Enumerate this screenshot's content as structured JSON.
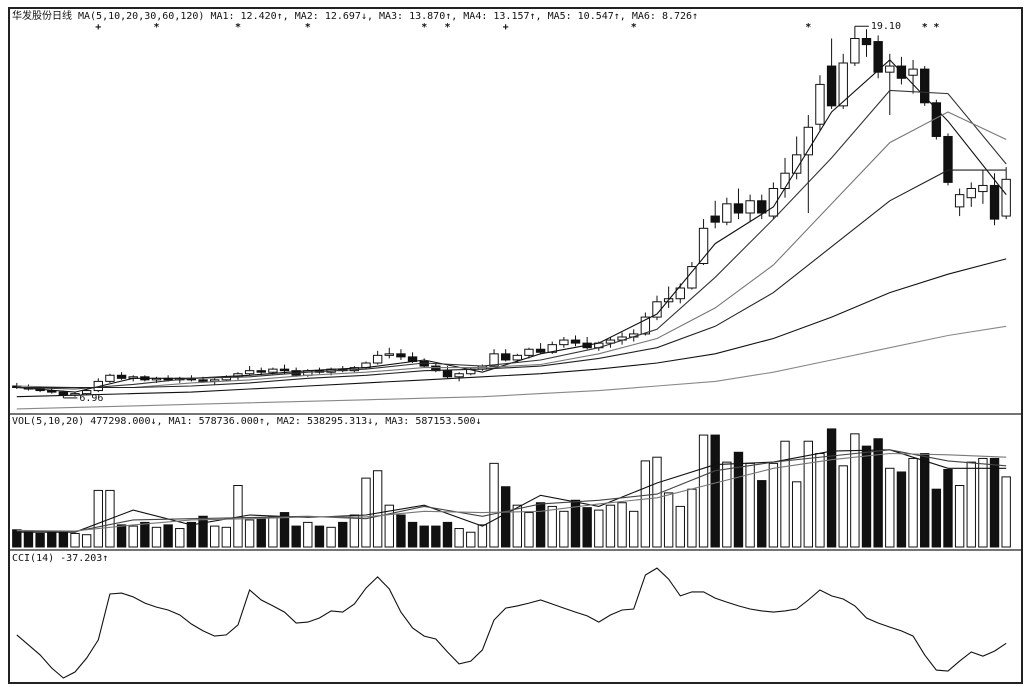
{
  "chart_data": [
    {
      "type": "candlestick",
      "title": "华发股份日线",
      "indicator": "MA(5,10,20,30,60,120)",
      "xlim": [
        -0.5,
        85.5
      ],
      "ylim": [
        6.5,
        19.5
      ],
      "up_color": "#ffffff",
      "down_color": "#111111",
      "ohlc": [
        [
          7.35,
          7.45,
          7.25,
          7.3
        ],
        [
          7.3,
          7.4,
          7.2,
          7.25
        ],
        [
          7.25,
          7.35,
          7.15,
          7.2
        ],
        [
          7.2,
          7.3,
          7.1,
          7.15
        ],
        [
          7.15,
          7.2,
          6.96,
          7.05
        ],
        [
          7.05,
          7.15,
          7.0,
          7.1
        ],
        [
          7.1,
          7.25,
          7.05,
          7.2
        ],
        [
          7.2,
          7.6,
          7.15,
          7.5
        ],
        [
          7.5,
          7.75,
          7.45,
          7.7
        ],
        [
          7.7,
          7.8,
          7.55,
          7.6
        ],
        [
          7.6,
          7.7,
          7.5,
          7.65
        ],
        [
          7.65,
          7.7,
          7.5,
          7.55
        ],
        [
          7.55,
          7.65,
          7.45,
          7.6
        ],
        [
          7.6,
          7.7,
          7.5,
          7.55
        ],
        [
          7.55,
          7.65,
          7.45,
          7.6
        ],
        [
          7.6,
          7.7,
          7.5,
          7.55
        ],
        [
          7.55,
          7.65,
          7.45,
          7.5
        ],
        [
          7.5,
          7.6,
          7.4,
          7.55
        ],
        [
          7.55,
          7.7,
          7.5,
          7.65
        ],
        [
          7.65,
          7.8,
          7.55,
          7.75
        ],
        [
          7.75,
          8.0,
          7.7,
          7.85
        ],
        [
          7.85,
          7.95,
          7.7,
          7.8
        ],
        [
          7.8,
          7.95,
          7.7,
          7.9
        ],
        [
          7.9,
          8.05,
          7.75,
          7.85
        ],
        [
          7.85,
          7.95,
          7.65,
          7.7
        ],
        [
          7.7,
          7.9,
          7.65,
          7.85
        ],
        [
          7.85,
          7.95,
          7.75,
          7.8
        ],
        [
          7.8,
          7.95,
          7.7,
          7.9
        ],
        [
          7.9,
          8.0,
          7.8,
          7.85
        ],
        [
          7.85,
          8.0,
          7.8,
          7.95
        ],
        [
          7.95,
          8.15,
          7.9,
          8.1
        ],
        [
          8.1,
          8.5,
          8.05,
          8.35
        ],
        [
          8.35,
          8.6,
          8.25,
          8.4
        ],
        [
          8.4,
          8.55,
          8.2,
          8.3
        ],
        [
          8.3,
          8.45,
          8.1,
          8.15
        ],
        [
          8.15,
          8.25,
          7.95,
          8.0
        ],
        [
          8.0,
          8.1,
          7.8,
          7.85
        ],
        [
          7.85,
          8.0,
          7.6,
          7.65
        ],
        [
          7.65,
          7.8,
          7.5,
          7.75
        ],
        [
          7.75,
          7.95,
          7.7,
          7.9
        ],
        [
          7.9,
          8.05,
          7.85,
          8.0
        ],
        [
          8.0,
          8.55,
          7.95,
          8.4
        ],
        [
          8.4,
          8.55,
          8.15,
          8.2
        ],
        [
          8.2,
          8.4,
          8.1,
          8.35
        ],
        [
          8.35,
          8.6,
          8.25,
          8.55
        ],
        [
          8.55,
          8.75,
          8.4,
          8.45
        ],
        [
          8.45,
          8.8,
          8.4,
          8.7
        ],
        [
          8.7,
          8.95,
          8.6,
          8.85
        ],
        [
          8.85,
          9.0,
          8.65,
          8.75
        ],
        [
          8.75,
          8.95,
          8.55,
          8.6
        ],
        [
          8.6,
          8.8,
          8.5,
          8.75
        ],
        [
          8.75,
          8.95,
          8.6,
          8.85
        ],
        [
          8.85,
          9.1,
          8.7,
          8.95
        ],
        [
          8.95,
          9.2,
          8.8,
          9.05
        ],
        [
          9.05,
          9.75,
          9.0,
          9.6
        ],
        [
          9.6,
          10.3,
          9.5,
          10.1
        ],
        [
          10.1,
          10.6,
          9.9,
          10.2
        ],
        [
          10.2,
          10.7,
          10.05,
          10.55
        ],
        [
          10.55,
          11.4,
          10.5,
          11.25
        ],
        [
          11.35,
          12.8,
          11.3,
          12.5
        ],
        [
          12.9,
          13.4,
          12.5,
          12.7
        ],
        [
          12.7,
          13.5,
          12.6,
          13.3
        ],
        [
          13.3,
          13.8,
          12.8,
          13.0
        ],
        [
          13.0,
          13.6,
          12.7,
          13.4
        ],
        [
          13.4,
          13.6,
          12.8,
          13.0
        ],
        [
          12.9,
          14.0,
          12.8,
          13.8
        ],
        [
          13.8,
          14.8,
          13.5,
          14.3
        ],
        [
          14.3,
          15.5,
          14.1,
          14.9
        ],
        [
          14.9,
          16.2,
          13.0,
          15.8
        ],
        [
          15.9,
          17.5,
          15.7,
          17.2
        ],
        [
          17.8,
          18.7,
          16.4,
          16.5
        ],
        [
          16.5,
          18.2,
          16.4,
          17.9
        ],
        [
          17.9,
          19.1,
          17.8,
          18.7
        ],
        [
          18.7,
          19.0,
          18.1,
          18.5
        ],
        [
          18.6,
          18.8,
          17.4,
          17.6
        ],
        [
          17.6,
          18.2,
          16.2,
          17.8
        ],
        [
          17.8,
          18.1,
          17.2,
          17.4
        ],
        [
          17.5,
          18.0,
          16.9,
          17.7
        ],
        [
          17.7,
          17.8,
          16.5,
          16.6
        ],
        [
          16.6,
          16.7,
          15.4,
          15.5
        ],
        [
          15.5,
          15.6,
          13.9,
          14.0
        ],
        [
          13.2,
          13.8,
          12.9,
          13.6
        ],
        [
          13.5,
          14.0,
          13.2,
          13.8
        ],
        [
          13.7,
          14.4,
          13.3,
          13.9
        ],
        [
          13.9,
          14.3,
          12.6,
          12.8
        ],
        [
          12.9,
          14.5,
          12.8,
          14.1
        ]
      ],
      "series": [
        {
          "name": "MA1: 12.420↑,",
          "color": "#111111",
          "x": [
            0,
            5,
            10,
            15,
            20,
            25,
            30,
            35,
            40,
            45,
            50,
            55,
            60,
            65,
            70,
            75,
            80,
            85
          ],
          "values": [
            7.3,
            7.15,
            7.6,
            7.6,
            7.7,
            7.85,
            7.95,
            8.2,
            7.8,
            8.4,
            8.75,
            9.7,
            12.0,
            13.2,
            16.3,
            18.0,
            16.0,
            13.6
          ]
        },
        {
          "name": "MA2: 12.697↓,",
          "color": "#333333",
          "x": [
            0,
            5,
            10,
            15,
            20,
            25,
            30,
            35,
            40,
            45,
            50,
            55,
            60,
            65,
            70,
            75,
            80,
            85
          ],
          "values": [
            7.3,
            7.25,
            7.4,
            7.6,
            7.65,
            7.8,
            7.9,
            8.1,
            8.0,
            8.2,
            8.6,
            9.2,
            10.9,
            12.8,
            14.8,
            17.0,
            16.9,
            14.6
          ]
        },
        {
          "name": "MA3: 13.870↑,",
          "color": "#777777",
          "x": [
            0,
            5,
            10,
            15,
            20,
            25,
            30,
            35,
            40,
            45,
            50,
            55,
            60,
            65,
            70,
            75,
            80,
            85
          ],
          "values": [
            7.35,
            7.3,
            7.3,
            7.45,
            7.55,
            7.7,
            7.8,
            7.95,
            7.95,
            8.05,
            8.4,
            8.9,
            9.9,
            11.3,
            13.3,
            15.3,
            16.3,
            15.4
          ]
        },
        {
          "name": "MA4: 13.157↑,",
          "color": "#222222",
          "x": [
            0,
            5,
            10,
            15,
            20,
            25,
            30,
            35,
            40,
            45,
            50,
            55,
            60,
            65,
            70,
            75,
            80,
            85
          ],
          "values": [
            7.3,
            7.3,
            7.3,
            7.35,
            7.45,
            7.6,
            7.7,
            7.85,
            7.9,
            8.0,
            8.25,
            8.6,
            9.3,
            10.4,
            11.9,
            13.4,
            14.4,
            14.4
          ]
        },
        {
          "name": "MA5: 10.547↑,",
          "color": "#111111",
          "x": [
            0,
            5,
            10,
            15,
            20,
            25,
            30,
            35,
            40,
            45,
            50,
            55,
            60,
            65,
            70,
            75,
            80,
            85
          ],
          "values": [
            7.0,
            7.05,
            7.1,
            7.15,
            7.25,
            7.35,
            7.45,
            7.55,
            7.65,
            7.75,
            7.9,
            8.1,
            8.4,
            8.9,
            9.6,
            10.4,
            11.0,
            11.5
          ]
        },
        {
          "name": "MA6: 8.726↑",
          "color": "#888888",
          "x": [
            0,
            5,
            10,
            15,
            20,
            25,
            30,
            35,
            40,
            45,
            50,
            55,
            60,
            65,
            70,
            75,
            80,
            85
          ],
          "values": [
            6.6,
            6.65,
            6.7,
            6.75,
            6.8,
            6.85,
            6.9,
            6.95,
            7.0,
            7.1,
            7.2,
            7.35,
            7.5,
            7.8,
            8.2,
            8.6,
            9.0,
            9.3
          ]
        }
      ],
      "annotations": [
        {
          "x": 4,
          "y": 6.96,
          "text": "6.96"
        },
        {
          "x": 72,
          "y": 19.1,
          "text": "19.10"
        }
      ],
      "signals": [
        {
          "x": 7,
          "text": "+"
        },
        {
          "x": 12,
          "text": "*"
        },
        {
          "x": 19,
          "text": "*"
        },
        {
          "x": 25,
          "text": "*"
        },
        {
          "x": 35,
          "text": "*"
        },
        {
          "x": 37,
          "text": "*"
        },
        {
          "x": 42,
          "text": "+"
        },
        {
          "x": 53,
          "text": "*"
        },
        {
          "x": 68,
          "text": "*"
        },
        {
          "x": 78,
          "text": "*"
        },
        {
          "x": 79,
          "text": "*"
        }
      ]
    },
    {
      "type": "bar",
      "title": "VOL(5,10,20) 477298.000↓,",
      "xlim": [
        -0.5,
        85.5
      ],
      "ylim": [
        0,
        1000000
      ],
      "values": [
        140000,
        120000,
        110000,
        120000,
        130000,
        110000,
        100000,
        460000,
        460000,
        180000,
        170000,
        200000,
        160000,
        180000,
        150000,
        200000,
        250000,
        170000,
        160000,
        500000,
        220000,
        240000,
        250000,
        280000,
        170000,
        200000,
        170000,
        160000,
        200000,
        260000,
        560000,
        620000,
        340000,
        260000,
        200000,
        170000,
        170000,
        200000,
        150000,
        120000,
        180000,
        680000,
        490000,
        340000,
        280000,
        360000,
        330000,
        290000,
        380000,
        320000,
        300000,
        340000,
        360000,
        290000,
        700000,
        730000,
        440000,
        330000,
        470000,
        910000,
        910000,
        690000,
        770000,
        680000,
        540000,
        680000,
        860000,
        530000,
        860000,
        760000,
        960000,
        660000,
        920000,
        820000,
        880000,
        640000,
        610000,
        720000,
        760000,
        470000,
        630000,
        500000,
        690000,
        720000,
        720000,
        570000
      ],
      "series": [
        {
          "name": "MA1: 578736.000↑,",
          "color": "#111111",
          "x": [
            0,
            5,
            10,
            15,
            20,
            25,
            30,
            35,
            40,
            45,
            50,
            55,
            60,
            65,
            70,
            75,
            80,
            85
          ],
          "values": [
            120000,
            120000,
            300000,
            180000,
            260000,
            240000,
            260000,
            340000,
            170000,
            420000,
            330000,
            520000,
            670000,
            690000,
            780000,
            790000,
            640000,
            640000
          ]
        },
        {
          "name": "MA2: 538295.313↓,",
          "color": "#444444",
          "x": [
            0,
            5,
            10,
            15,
            20,
            25,
            30,
            35,
            40,
            45,
            50,
            55,
            60,
            65,
            70,
            75,
            80,
            85
          ],
          "values": [
            130000,
            125000,
            220000,
            230000,
            240000,
            250000,
            230000,
            330000,
            250000,
            350000,
            380000,
            430000,
            620000,
            690000,
            740000,
            790000,
            700000,
            660000
          ]
        },
        {
          "name": "MA3: 587153.500↓",
          "color": "#777777",
          "x": [
            0,
            5,
            10,
            15,
            20,
            25,
            30,
            35,
            40,
            45,
            50,
            55,
            60,
            65,
            70,
            75,
            80,
            85
          ],
          "values": [
            135000,
            130000,
            180000,
            220000,
            230000,
            245000,
            245000,
            290000,
            280000,
            290000,
            350000,
            400000,
            520000,
            640000,
            710000,
            760000,
            750000,
            730000
          ]
        }
      ]
    },
    {
      "type": "line",
      "title": "CCI(14) -37.203↑",
      "xlim": [
        -0.5,
        85.5
      ],
      "ylim": [
        -200,
        330
      ],
      "color": "#111111",
      "values": [
        -2,
        -44,
        -86,
        -141,
        -183,
        -158,
        -99,
        -23,
        170,
        174,
        158,
        132,
        115,
        103,
        82,
        44,
        15,
        -7,
        -2,
        40,
        187,
        145,
        120,
        94,
        48,
        52,
        69,
        99,
        94,
        128,
        195,
        242,
        191,
        94,
        27,
        -7,
        -19,
        -74,
        -124,
        -112,
        -65,
        61,
        111,
        120,
        132,
        145,
        128,
        111,
        94,
        78,
        52,
        82,
        103,
        107,
        250,
        279,
        233,
        162,
        179,
        179,
        153,
        136,
        120,
        107,
        99,
        94,
        99,
        107,
        145,
        187,
        162,
        149,
        120,
        69,
        48,
        31,
        15,
        -7,
        -86,
        -150,
        -154,
        -112,
        -74,
        -91,
        -70,
        -37.203
      ]
    }
  ]
}
